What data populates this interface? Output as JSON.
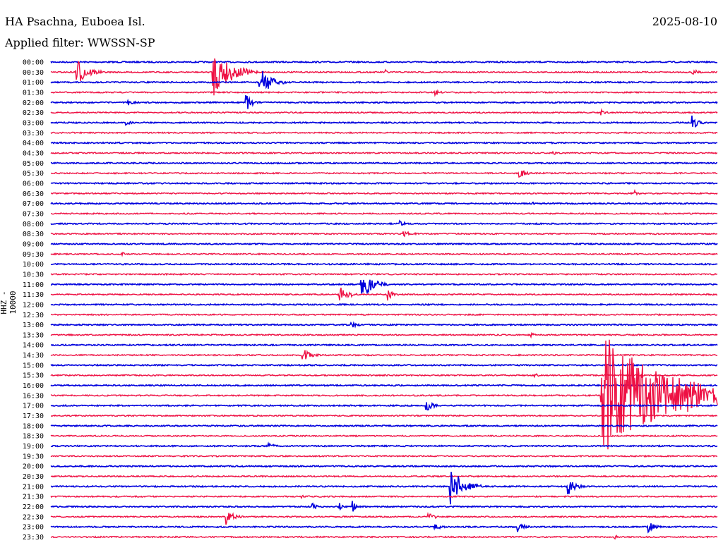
{
  "header": {
    "station": "HA Psachna, Euboea Isl.",
    "date": "2025-08-10",
    "filter": "Applied filter: WWSSN-SP",
    "channel": "HHZ - 10000"
  },
  "colors": {
    "blue": "#0000dd",
    "red": "#ee1144",
    "background": "#ffffff"
  },
  "chart_data": {
    "type": "line",
    "title": "HA Psachna, Euboea Isl.",
    "ylabel": "HHZ - 10000",
    "y_tick_labels": [
      "00:00",
      "00:30",
      "01:00",
      "01:30",
      "02:00",
      "02:30",
      "03:00",
      "03:30",
      "04:00",
      "04:30",
      "05:00",
      "05:30",
      "06:00",
      "06:30",
      "07:00",
      "07:30",
      "08:00",
      "08:30",
      "09:00",
      "09:30",
      "10:00",
      "10:30",
      "11:00",
      "11:30",
      "12:00",
      "12:30",
      "13:00",
      "13:30",
      "14:00",
      "14:30",
      "15:00",
      "15:30",
      "16:00",
      "16:30",
      "17:00",
      "17:30",
      "18:00",
      "18:30",
      "19:00",
      "19:30",
      "20:00",
      "20:30",
      "21:00",
      "21:30",
      "22:00",
      "22:30",
      "23:00",
      "23:30"
    ],
    "trace_colors": [
      "blue",
      "red"
    ],
    "trace_minutes": 30,
    "x_range_minutes": [
      0,
      30
    ],
    "events": [
      {
        "row": 1,
        "minute": 1.1,
        "amp": 24,
        "dur": 1.2
      },
      {
        "row": 1,
        "minute": 7.3,
        "amp": 36,
        "dur": 2.0
      },
      {
        "row": 1,
        "minute": 15.1,
        "amp": 3,
        "dur": 0.4
      },
      {
        "row": 1,
        "minute": 28.9,
        "amp": 5,
        "dur": 0.6
      },
      {
        "row": 2,
        "minute": 9.4,
        "amp": 22,
        "dur": 1.2
      },
      {
        "row": 3,
        "minute": 17.3,
        "amp": 5,
        "dur": 0.5
      },
      {
        "row": 4,
        "minute": 3.5,
        "amp": 4,
        "dur": 0.6
      },
      {
        "row": 4,
        "minute": 8.8,
        "amp": 12,
        "dur": 0.6
      },
      {
        "row": 5,
        "minute": 24.8,
        "amp": 4,
        "dur": 0.5
      },
      {
        "row": 6,
        "minute": 3.4,
        "amp": 4,
        "dur": 0.5
      },
      {
        "row": 6,
        "minute": 28.9,
        "amp": 9,
        "dur": 0.6
      },
      {
        "row": 9,
        "minute": 22.6,
        "amp": 3,
        "dur": 0.5
      },
      {
        "row": 11,
        "minute": 21.1,
        "amp": 8,
        "dur": 0.6
      },
      {
        "row": 13,
        "minute": 26.3,
        "amp": 4,
        "dur": 0.5
      },
      {
        "row": 14,
        "minute": 21.7,
        "amp": 3,
        "dur": 0.5
      },
      {
        "row": 16,
        "minute": 15.7,
        "amp": 5,
        "dur": 0.5
      },
      {
        "row": 17,
        "minute": 15.9,
        "amp": 4,
        "dur": 1.4
      },
      {
        "row": 19,
        "minute": 3.1,
        "amp": 4,
        "dur": 0.8
      },
      {
        "row": 22,
        "minute": 14.0,
        "amp": 20,
        "dur": 1.2
      },
      {
        "row": 23,
        "minute": 13.0,
        "amp": 12,
        "dur": 1.0
      },
      {
        "row": 23,
        "minute": 15.2,
        "amp": 8,
        "dur": 0.5
      },
      {
        "row": 26,
        "minute": 13.5,
        "amp": 7,
        "dur": 0.6
      },
      {
        "row": 27,
        "minute": 21.6,
        "amp": 3,
        "dur": 0.6
      },
      {
        "row": 29,
        "minute": 11.3,
        "amp": 10,
        "dur": 1.0
      },
      {
        "row": 31,
        "minute": 21.8,
        "amp": 3,
        "dur": 0.5
      },
      {
        "row": 33,
        "minute": 24.8,
        "amp": 90,
        "dur": 8.0
      },
      {
        "row": 34,
        "minute": 16.9,
        "amp": 8,
        "dur": 0.7
      },
      {
        "row": 38,
        "minute": 9.8,
        "amp": 4,
        "dur": 0.8
      },
      {
        "row": 42,
        "minute": 18.0,
        "amp": 28,
        "dur": 1.4
      },
      {
        "row": 42,
        "minute": 23.3,
        "amp": 13,
        "dur": 0.8
      },
      {
        "row": 43,
        "minute": 11.3,
        "amp": 5,
        "dur": 0.5
      },
      {
        "row": 44,
        "minute": 11.8,
        "amp": 6,
        "dur": 0.3
      },
      {
        "row": 44,
        "minute": 13.0,
        "amp": 7,
        "dur": 0.3
      },
      {
        "row": 44,
        "minute": 13.6,
        "amp": 7,
        "dur": 0.3
      },
      {
        "row": 45,
        "minute": 7.9,
        "amp": 11,
        "dur": 0.8
      },
      {
        "row": 45,
        "minute": 17.0,
        "amp": 7,
        "dur": 0.6
      },
      {
        "row": 46,
        "minute": 17.3,
        "amp": 4,
        "dur": 1.0
      },
      {
        "row": 46,
        "minute": 21.0,
        "amp": 9,
        "dur": 0.6
      },
      {
        "row": 46,
        "minute": 26.9,
        "amp": 9,
        "dur": 0.6
      },
      {
        "row": 47,
        "minute": 25.4,
        "amp": 3,
        "dur": 0.4
      }
    ]
  }
}
